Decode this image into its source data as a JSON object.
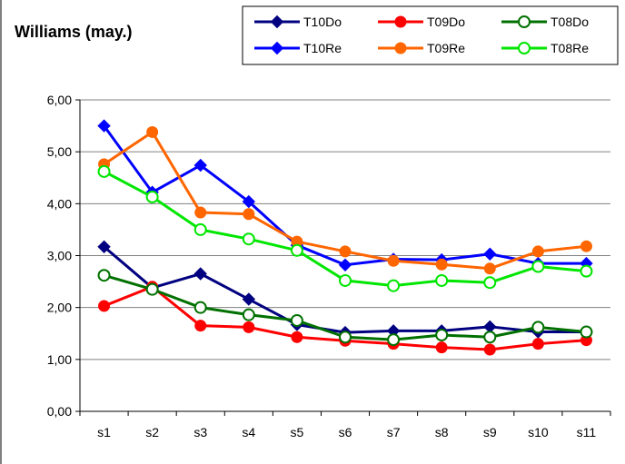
{
  "chart_data": {
    "type": "line",
    "title": "Williams (may.)",
    "xlabel": "",
    "ylabel": "",
    "ylim": [
      0,
      6
    ],
    "yticks": [
      "0,00",
      "1,00",
      "2,00",
      "3,00",
      "4,00",
      "5,00",
      "6,00"
    ],
    "categories": [
      "s1",
      "s2",
      "s3",
      "s4",
      "s5",
      "s6",
      "s7",
      "s8",
      "s9",
      "s10",
      "s11"
    ],
    "grid": true,
    "legend_placement": "top-right",
    "series": [
      {
        "name": "T10Do",
        "color": "#000080",
        "marker": "diamond-filled",
        "values": [
          3.17,
          2.38,
          2.65,
          2.16,
          1.67,
          1.52,
          1.55,
          1.55,
          1.63,
          1.53,
          1.53
        ]
      },
      {
        "name": "T09Do",
        "color": "#ff0000",
        "marker": "circle-filled",
        "values": [
          2.03,
          2.4,
          1.65,
          1.62,
          1.43,
          1.36,
          1.3,
          1.23,
          1.19,
          1.3,
          1.37
        ]
      },
      {
        "name": "T08Do",
        "color": "#007000",
        "marker": "circle-open",
        "values": [
          2.62,
          2.35,
          2.0,
          1.86,
          1.75,
          1.43,
          1.38,
          1.47,
          1.43,
          1.62,
          1.53
        ]
      },
      {
        "name": "T10Re",
        "color": "#0000ff",
        "marker": "diamond-filled",
        "values": [
          5.5,
          4.22,
          4.74,
          4.04,
          3.2,
          2.82,
          2.93,
          2.92,
          3.03,
          2.85,
          2.85
        ]
      },
      {
        "name": "T09Re",
        "color": "#ff6600",
        "marker": "circle-filled",
        "values": [
          4.76,
          5.38,
          3.83,
          3.8,
          3.27,
          3.08,
          2.9,
          2.83,
          2.75,
          3.08,
          3.18
        ]
      },
      {
        "name": "T08Re",
        "color": "#00e600",
        "marker": "circle-open",
        "values": [
          4.62,
          4.13,
          3.5,
          3.32,
          3.1,
          2.52,
          2.42,
          2.52,
          2.48,
          2.79,
          2.7
        ]
      }
    ]
  }
}
